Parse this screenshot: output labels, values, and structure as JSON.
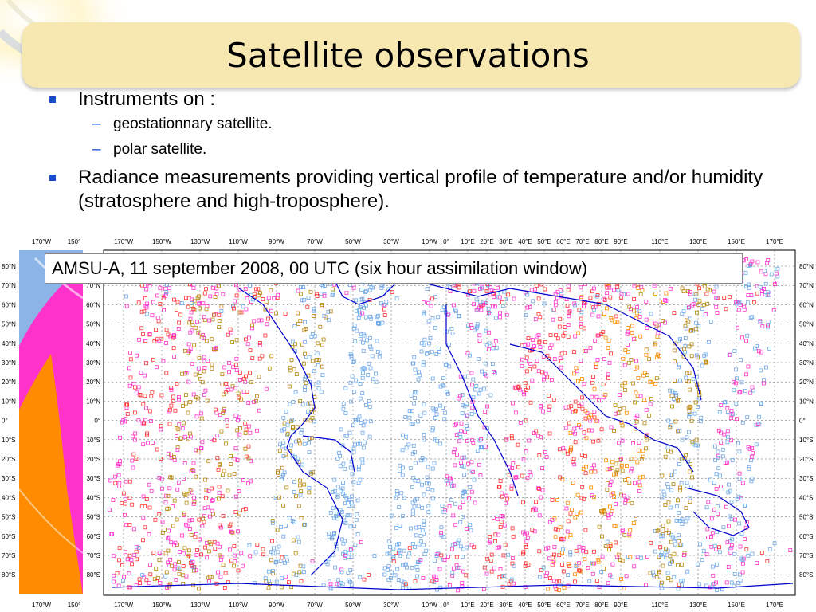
{
  "slide": {
    "title": "Satellite observations",
    "bullets": [
      {
        "text": "Instruments on :",
        "subitems": [
          "geostationnary satellite.",
          "polar satellite."
        ]
      },
      {
        "text": "Radiance measurements providing vertical profile of temperature and/or humidity (stratosphere and high-troposphere).",
        "subitems": []
      }
    ]
  },
  "map": {
    "caption": "AMSU-A, 11 september 2008, 00 UTC (six hour assimilation window)",
    "top_lon_labels": [
      "170°W",
      "150°W",
      "130°W",
      "110°W",
      "90°W",
      "70°W",
      "50°W",
      "30°W",
      "10°W",
      "0°",
      "10°E",
      "20°E",
      "30°E",
      "40°E",
      "50°E",
      "60°E",
      "70°E",
      "80°E",
      "90°E",
      "110°E",
      "130°E",
      "150°E",
      "170°E"
    ],
    "lat_labels": [
      "80°N",
      "70°N",
      "60°N",
      "50°N",
      "40°N",
      "30°N",
      "20°N",
      "10°N",
      "0°",
      "10°S",
      "20°S",
      "30°S",
      "40°S",
      "50°S",
      "60°S",
      "70°S",
      "80°S"
    ],
    "left_lon_labels": [
      "170°W",
      "150°"
    ],
    "symbol_colors": {
      "magenta": "#ff33cc",
      "red": "#ff3333",
      "brown": "#b8860b",
      "orange": "#ff8c00",
      "lightblue": "#6fa8e8",
      "coast": "#0000cc"
    }
  }
}
